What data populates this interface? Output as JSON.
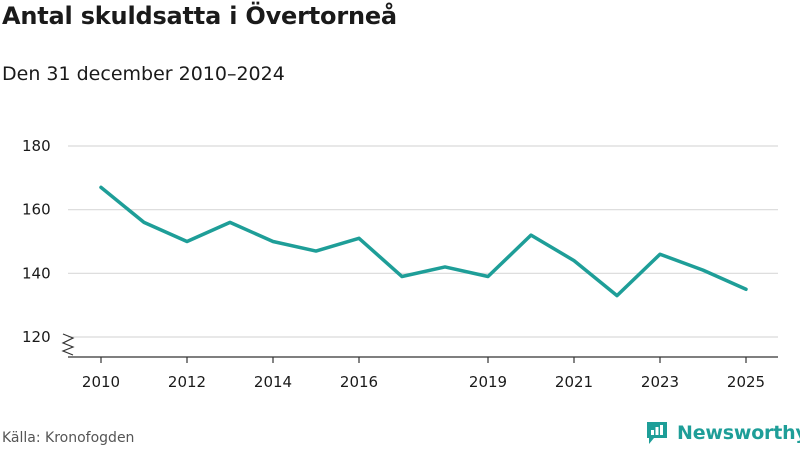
{
  "header": {
    "title": "Antal skuldsatta i Övertorneå",
    "subtitle": "Den 31 december 2010–2024"
  },
  "footer": {
    "source": "Källa: Kronofogden",
    "brand": "Newsworthy"
  },
  "colors": {
    "line": "#1e9e98",
    "grid": "#d9d9d9",
    "axis": "#333333",
    "brand": "#1e9e98"
  },
  "chart_data": {
    "type": "line",
    "title": "Antal skuldsatta i Övertorneå",
    "subtitle": "Den 31 december 2010–2024",
    "xlabel": "",
    "ylabel": "",
    "x": [
      2010,
      2011,
      2012,
      2013,
      2014,
      2015,
      2016,
      2017,
      2018,
      2019,
      2020,
      2021,
      2022,
      2023,
      2024,
      2025
    ],
    "series": [
      {
        "name": "Antal skuldsatta",
        "values": [
          167,
          156,
          150,
          156,
          150,
          147,
          151,
          139,
          142,
          139,
          152,
          144,
          133,
          146,
          141,
          135
        ]
      }
    ],
    "xticks": [
      "2010",
      "2012",
      "2014",
      "2016",
      "2019",
      "2021",
      "2023",
      "2025"
    ],
    "yticks": [
      "120",
      "140",
      "160",
      "180"
    ],
    "ylim": [
      120,
      180
    ],
    "xlim": [
      2010,
      2025
    ],
    "grid": true,
    "y_axis_break": true
  }
}
